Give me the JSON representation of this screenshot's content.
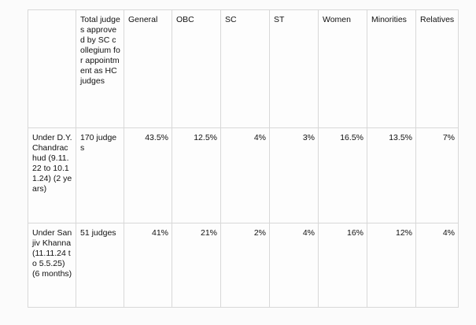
{
  "table": {
    "headers": [
      "",
      "Total judges approved by SC collegium for appointment as HC judges",
      "General",
      "OBC",
      "SC",
      "ST",
      "Women",
      "Minorities",
      "Relatives"
    ],
    "rows": [
      {
        "label": "Under D.Y. Chandrachud (9.11.22 to 10.11.24) (2 years)",
        "total": "170 judges",
        "general": "43.5%",
        "obc": "12.5%",
        "sc": "4%",
        "st": "3%",
        "women": "16.5%",
        "minorities": "13.5%",
        "relatives": "7%"
      },
      {
        "label": "Under Sanjiv Khanna (11.11.24 to 5.5.25) (6 months)",
        "total": "51 judges",
        "general": "41%",
        "obc": "21%",
        "sc": "2%",
        "st": "4%",
        "women": "16%",
        "minorities": "12%",
        "relatives": "4%"
      }
    ]
  }
}
